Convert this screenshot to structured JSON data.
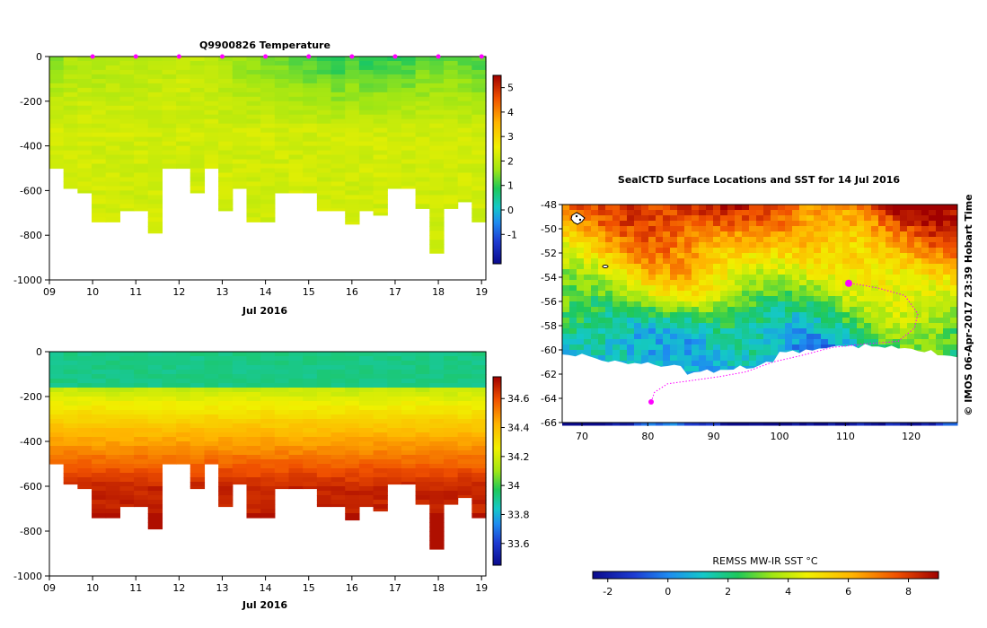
{
  "colors": {
    "white": "#ffffff",
    "black": "#000000",
    "track": "#ff00ff"
  },
  "chart_data": [
    {
      "type": "heatmap",
      "id": "temperature",
      "title": "Q9900826  Temperature",
      "xlabel": "Jul 2016",
      "x_ticks": [
        "09",
        "10",
        "11",
        "12",
        "13",
        "14",
        "15",
        "16",
        "17",
        "18",
        "19"
      ],
      "x_range": [
        9,
        19.1
      ],
      "y_ticks": [
        "0",
        "-200",
        "-400",
        "-600",
        "-800",
        "-1000"
      ],
      "y_range": [
        -1000,
        0
      ],
      "colorbar_ticks": [
        "5",
        "4",
        "3",
        "2",
        "1",
        "0",
        "-1"
      ],
      "colorbar_range": [
        -2.2,
        5.5
      ],
      "profile_markers": [
        10,
        11,
        12,
        13,
        14,
        15,
        16,
        17,
        18,
        19
      ],
      "profile_depths": [
        500,
        590,
        610,
        740,
        740,
        690,
        690,
        790,
        500,
        500,
        610,
        500,
        690,
        590,
        740,
        740,
        610,
        610,
        610,
        690,
        690,
        750,
        690,
        710,
        590,
        590,
        680,
        880,
        680,
        650,
        740
      ],
      "surface_values": [
        1.6,
        1.8,
        1.9,
        1.8,
        1.9,
        1.9,
        1.8,
        2.0,
        2.0,
        2.1,
        2.0,
        1.9,
        1.8,
        1.6,
        1.5,
        1.4,
        1.3,
        1.2,
        1.1,
        1.0,
        0.8,
        1.1,
        0.9,
        1.0,
        1.0,
        1.0,
        1.2,
        1.3,
        1.3,
        1.2,
        1.1
      ]
    },
    {
      "type": "heatmap",
      "id": "salinity",
      "title": "",
      "xlabel": "Jul 2016",
      "x_ticks": [
        "09",
        "10",
        "11",
        "12",
        "13",
        "14",
        "15",
        "16",
        "17",
        "18",
        "19"
      ],
      "x_range": [
        9,
        19.1
      ],
      "y_ticks": [
        "0",
        "-200",
        "-400",
        "-600",
        "-800",
        "-1000"
      ],
      "y_range": [
        -1000,
        0
      ],
      "colorbar_ticks": [
        "34.6",
        "34.4",
        "34.2",
        "34",
        "33.8",
        "33.6"
      ],
      "colorbar_range": [
        33.45,
        34.75
      ],
      "profile_depths": [
        500,
        590,
        610,
        740,
        740,
        690,
        690,
        790,
        500,
        500,
        610,
        500,
        690,
        590,
        740,
        740,
        610,
        610,
        610,
        690,
        690,
        750,
        690,
        710,
        590,
        590,
        680,
        880,
        680,
        650,
        740
      ]
    },
    {
      "type": "heatmap",
      "id": "sst_map",
      "title": "SealCTD Surface Locations and SST for 14 Jul 2016",
      "x_ticks": [
        "70",
        "80",
        "90",
        "100",
        "110",
        "120"
      ],
      "x_range": [
        67,
        127
      ],
      "y_ticks": [
        "-48",
        "-50",
        "-52",
        "-54",
        "-56",
        "-58",
        "-60",
        "-62",
        "-64",
        "-66"
      ],
      "y_range": [
        -66,
        -48
      ],
      "current_position": [
        110.5,
        -54.5
      ],
      "start_position": [
        80.5,
        -64.3
      ],
      "colorbar_label": "REMSS MW-IR SST °C",
      "colorbar_ticks": [
        "-2",
        "0",
        "2",
        "4",
        "6",
        "8"
      ],
      "colorbar_range": [
        -2.5,
        9
      ]
    }
  ],
  "credit": "© IMOS 06-Apr-2017 23:39 Hobart Time"
}
